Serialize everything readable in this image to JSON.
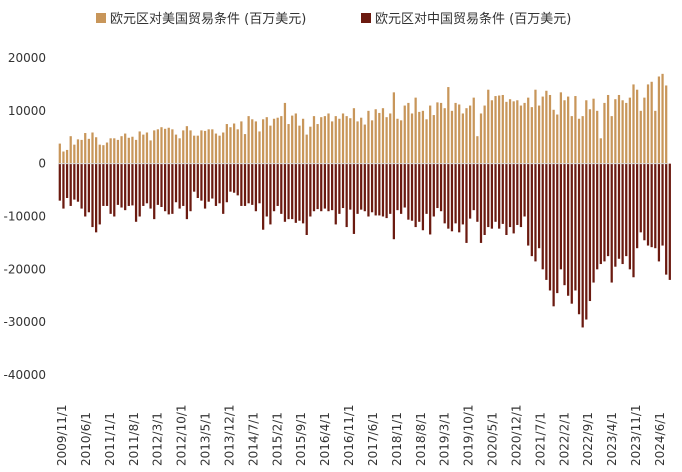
{
  "chart_data": {
    "type": "bar",
    "title": "",
    "xlabel": "",
    "ylabel": "",
    "ylim": [
      -40000,
      20000
    ],
    "yticks": [
      20000,
      10000,
      0,
      -10000,
      -20000,
      -30000,
      -40000
    ],
    "grid": false,
    "legend_position": "top",
    "x_tick_labels": [
      "2009/11/1",
      "2010/6/1",
      "2011/1/1",
      "2011/8/1",
      "2012/3/1",
      "2012/10/1",
      "2013/5/1",
      "2013/12/1",
      "2014/7/1",
      "2015/2/1",
      "2015/9/1",
      "2016/4/1",
      "2016/11/1",
      "2017/6/1",
      "2018/1/1",
      "2018/8/1",
      "2019/3/1",
      "2019/10/1",
      "2020/5/1",
      "2020/12/1",
      "2021/7/1",
      "2022/2/1",
      "2022/9/1",
      "2023/4/1",
      "2023/11/1",
      "2024/6/1"
    ],
    "series": [
      {
        "name": "欧元区对美国贸易条件 (百万美元)",
        "color": "#C8965A",
        "values": [
          3800,
          2300,
          2600,
          5200,
          3600,
          4600,
          4500,
          5800,
          4700,
          5900,
          5000,
          3600,
          3500,
          4000,
          4800,
          4800,
          4500,
          5200,
          5700,
          4900,
          5100,
          4500,
          6100,
          5500,
          5900,
          4400,
          6300,
          6500,
          6900,
          6600,
          6800,
          6500,
          5500,
          4800,
          6300,
          7100,
          6300,
          5300,
          5300,
          6300,
          6200,
          6500,
          6500,
          5700,
          5300,
          5900,
          7500,
          6900,
          7600,
          6500,
          8000,
          5600,
          9000,
          8400,
          8000,
          6100,
          8400,
          8800,
          7200,
          8500,
          8700,
          9000,
          11500,
          7500,
          9100,
          9500,
          7200,
          8500,
          5500,
          7000,
          9000,
          7500,
          8800,
          9000,
          9500,
          8000,
          9000,
          8500,
          9500,
          9000,
          8600,
          10500,
          8000,
          8700,
          7400,
          10000,
          8200,
          10300,
          9600,
          10500,
          8800,
          9500,
          13500,
          8500,
          8200,
          11000,
          11500,
          9500,
          12500,
          9800,
          10000,
          8400,
          11000,
          9200,
          11600,
          11500,
          10500,
          14500,
          10000,
          11500,
          11200,
          9500,
          10500,
          11000,
          12500,
          5200,
          9500,
          11000,
          14000,
          12000,
          12800,
          12900,
          13000,
          11700,
          12200,
          11800,
          12000,
          11000,
          11500,
          12500,
          10700,
          14000,
          11000,
          12700,
          13800,
          13000,
          10200,
          9300,
          13500,
          12000,
          12700,
          9000,
          12800,
          8500,
          9000,
          12000,
          10300,
          12300,
          10000,
          4800,
          11500,
          13000,
          9000,
          12200,
          13000,
          12000,
          11500,
          12500,
          15000,
          14000,
          10000,
          12500,
          15000,
          15500,
          10000,
          16500,
          17000,
          14800
        ]
      },
      {
        "name": "欧元区对中国贸易条件 (百万美元)",
        "color": "#6B1A10",
        "values": [
          -7000,
          -8500,
          -6500,
          -8000,
          -6800,
          -7200,
          -8500,
          -10000,
          -9200,
          -12000,
          -13000,
          -11500,
          -8000,
          -8000,
          -9500,
          -10000,
          -7800,
          -8300,
          -8800,
          -8000,
          -7900,
          -11000,
          -10000,
          -8000,
          -7500,
          -8500,
          -10500,
          -7800,
          -8200,
          -9000,
          -9600,
          -9500,
          -7300,
          -8500,
          -8000,
          -10500,
          -9000,
          -5300,
          -6500,
          -7000,
          -8500,
          -7200,
          -6600,
          -8000,
          -7500,
          -9500,
          -7300,
          -5300,
          -5500,
          -6000,
          -8000,
          -8000,
          -7500,
          -7800,
          -9000,
          -7500,
          -12500,
          -10000,
          -11500,
          -9000,
          -8000,
          -9500,
          -11000,
          -10500,
          -10500,
          -11200,
          -10800,
          -11300,
          -13500,
          -10000,
          -9000,
          -8600,
          -9000,
          -8500,
          -9000,
          -8800,
          -11500,
          -9500,
          -8400,
          -12000,
          -8700,
          -13300,
          -9500,
          -8700,
          -9000,
          -10000,
          -9200,
          -9800,
          -9800,
          -10000,
          -10300,
          -9500,
          -14300,
          -8800,
          -9500,
          -8300,
          -10600,
          -10800,
          -12000,
          -11000,
          -12600,
          -9500,
          -13400,
          -10000,
          -8400,
          -9000,
          -11300,
          -12300,
          -12800,
          -11300,
          -13000,
          -11500,
          -15000,
          -10400,
          -8800,
          -11000,
          -15000,
          -13500,
          -12000,
          -12300,
          -11000,
          -12300,
          -11400,
          -13500,
          -12000,
          -13200,
          -11600,
          -12000,
          -10000,
          -15500,
          -17500,
          -18500,
          -16000,
          -20000,
          -22000,
          -24000,
          -27000,
          -24500,
          -20000,
          -23000,
          -25000,
          -26500,
          -24000,
          -28500,
          -31000,
          -29500,
          -26000,
          -22500,
          -20000,
          -19000,
          -18500,
          -17500,
          -22500,
          -19500,
          -18000,
          -19000,
          -17500,
          -20000,
          -21500,
          -16000,
          -13000,
          -14500,
          -15500,
          -15800,
          -16000,
          -18500,
          -15500,
          -21000,
          -22000
        ]
      }
    ]
  }
}
